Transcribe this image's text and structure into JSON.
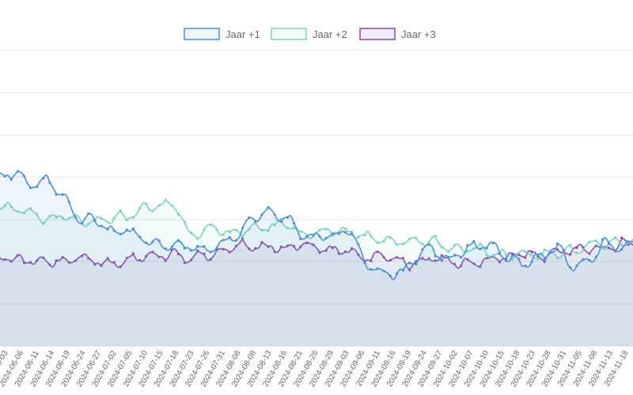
{
  "chart_data": {
    "type": "area",
    "title": "",
    "xlabel": "",
    "ylabel": "",
    "grid": true,
    "legend_position": "top",
    "x_tick_labels": [
      "2024-06-03",
      "2024-06-06",
      "2024-06-11",
      "2024-06-14",
      "2024-06-19",
      "2024-06-24",
      "2024-06-27",
      "2024-07-02",
      "2024-07-05",
      "2024-07-10",
      "2024-07-15",
      "2024-07-18",
      "2024-07-23",
      "2024-07-26",
      "2024-07-31",
      "2024-08-06",
      "2024-08-08",
      "2024-08-13",
      "2024-08-16",
      "2024-08-21",
      "2024-08-26",
      "2024-08-29",
      "2024-09-03",
      "2024-09-06",
      "2024-09-11",
      "2024-09-16",
      "2024-09-19",
      "2024-09-24",
      "2024-09-27",
      "2024-10-02",
      "2024-10-07",
      "2024-10-10",
      "2024-10-15",
      "2024-10-18",
      "2024-10-23",
      "2024-10-28",
      "2024-10-31",
      "2024-11-05",
      "2024-11-08",
      "2024-11-13",
      "2024-11-18"
    ],
    "series": [
      {
        "name": "Jaar +1",
        "color": "#4a90d9",
        "fill": "rgba(74,144,217,0.10)",
        "anchors": [
          [
            0,
            400
          ],
          [
            1,
            410
          ],
          [
            2,
            380
          ],
          [
            3,
            395
          ],
          [
            4,
            355
          ],
          [
            5,
            300
          ],
          [
            6,
            300
          ],
          [
            7,
            270
          ],
          [
            8,
            275
          ],
          [
            9,
            250
          ],
          [
            10,
            240
          ],
          [
            11,
            240
          ],
          [
            12,
            235
          ],
          [
            13,
            225
          ],
          [
            14,
            245
          ],
          [
            15,
            265
          ],
          [
            16,
            300
          ],
          [
            17,
            315
          ],
          [
            18,
            305
          ],
          [
            19,
            260
          ],
          [
            20,
            255
          ],
          [
            21,
            260
          ],
          [
            22,
            275
          ],
          [
            23,
            195
          ],
          [
            24,
            172
          ],
          [
            25,
            168
          ],
          [
            26,
            200
          ],
          [
            27,
            235
          ],
          [
            28,
            205
          ],
          [
            29,
            220
          ],
          [
            30,
            240
          ],
          [
            31,
            235
          ],
          [
            32,
            205
          ],
          [
            33,
            195
          ],
          [
            34,
            215
          ],
          [
            35,
            230
          ],
          [
            36,
            185
          ],
          [
            37,
            200
          ],
          [
            38,
            242
          ],
          [
            39,
            235
          ],
          [
            40,
            250
          ]
        ]
      },
      {
        "name": "Jaar +2",
        "color": "#7dd3c0",
        "fill": "rgba(125,211,192,0.10)",
        "anchors": [
          [
            0,
            335
          ],
          [
            1,
            325
          ],
          [
            2,
            310
          ],
          [
            3,
            300
          ],
          [
            4,
            305
          ],
          [
            5,
            295
          ],
          [
            6,
            290
          ],
          [
            7,
            300
          ],
          [
            8,
            305
          ],
          [
            9,
            325
          ],
          [
            10,
            330
          ],
          [
            11,
            335
          ],
          [
            12,
            265
          ],
          [
            13,
            275
          ],
          [
            14,
            270
          ],
          [
            15,
            270
          ],
          [
            16,
            275
          ],
          [
            17,
            285
          ],
          [
            18,
            290
          ],
          [
            19,
            265
          ],
          [
            20,
            265
          ],
          [
            21,
            275
          ],
          [
            22,
            270
          ],
          [
            23,
            260
          ],
          [
            24,
            255
          ],
          [
            25,
            245
          ],
          [
            26,
            250
          ],
          [
            27,
            250
          ],
          [
            28,
            235
          ],
          [
            29,
            230
          ],
          [
            30,
            225
          ],
          [
            31,
            220
          ],
          [
            32,
            215
          ],
          [
            33,
            220
          ],
          [
            34,
            215
          ],
          [
            35,
            220
          ],
          [
            36,
            225
          ],
          [
            37,
            240
          ],
          [
            38,
            240
          ],
          [
            39,
            250
          ],
          [
            40,
            250
          ]
        ]
      },
      {
        "name": "Jaar +3",
        "color": "#8e44ad",
        "fill": "rgba(142,68,173,0.10)",
        "anchors": [
          [
            0,
            210
          ],
          [
            1,
            205
          ],
          [
            2,
            200
          ],
          [
            3,
            198
          ],
          [
            4,
            200
          ],
          [
            5,
            205
          ],
          [
            6,
            200
          ],
          [
            7,
            195
          ],
          [
            8,
            205
          ],
          [
            9,
            210
          ],
          [
            10,
            215
          ],
          [
            11,
            215
          ],
          [
            12,
            210
          ],
          [
            13,
            215
          ],
          [
            14,
            225
          ],
          [
            15,
            240
          ],
          [
            16,
            235
          ],
          [
            17,
            235
          ],
          [
            18,
            230
          ],
          [
            19,
            240
          ],
          [
            20,
            230
          ],
          [
            21,
            228
          ],
          [
            22,
            225
          ],
          [
            23,
            205
          ],
          [
            24,
            210
          ],
          [
            25,
            200
          ],
          [
            26,
            195
          ],
          [
            27,
            205
          ],
          [
            28,
            200
          ],
          [
            29,
            195
          ],
          [
            30,
            200
          ],
          [
            31,
            205
          ],
          [
            32,
            210
          ],
          [
            33,
            220
          ],
          [
            34,
            215
          ],
          [
            35,
            220
          ],
          [
            36,
            225
          ],
          [
            37,
            230
          ],
          [
            38,
            230
          ],
          [
            39,
            240
          ],
          [
            40,
            250
          ]
        ]
      }
    ]
  }
}
